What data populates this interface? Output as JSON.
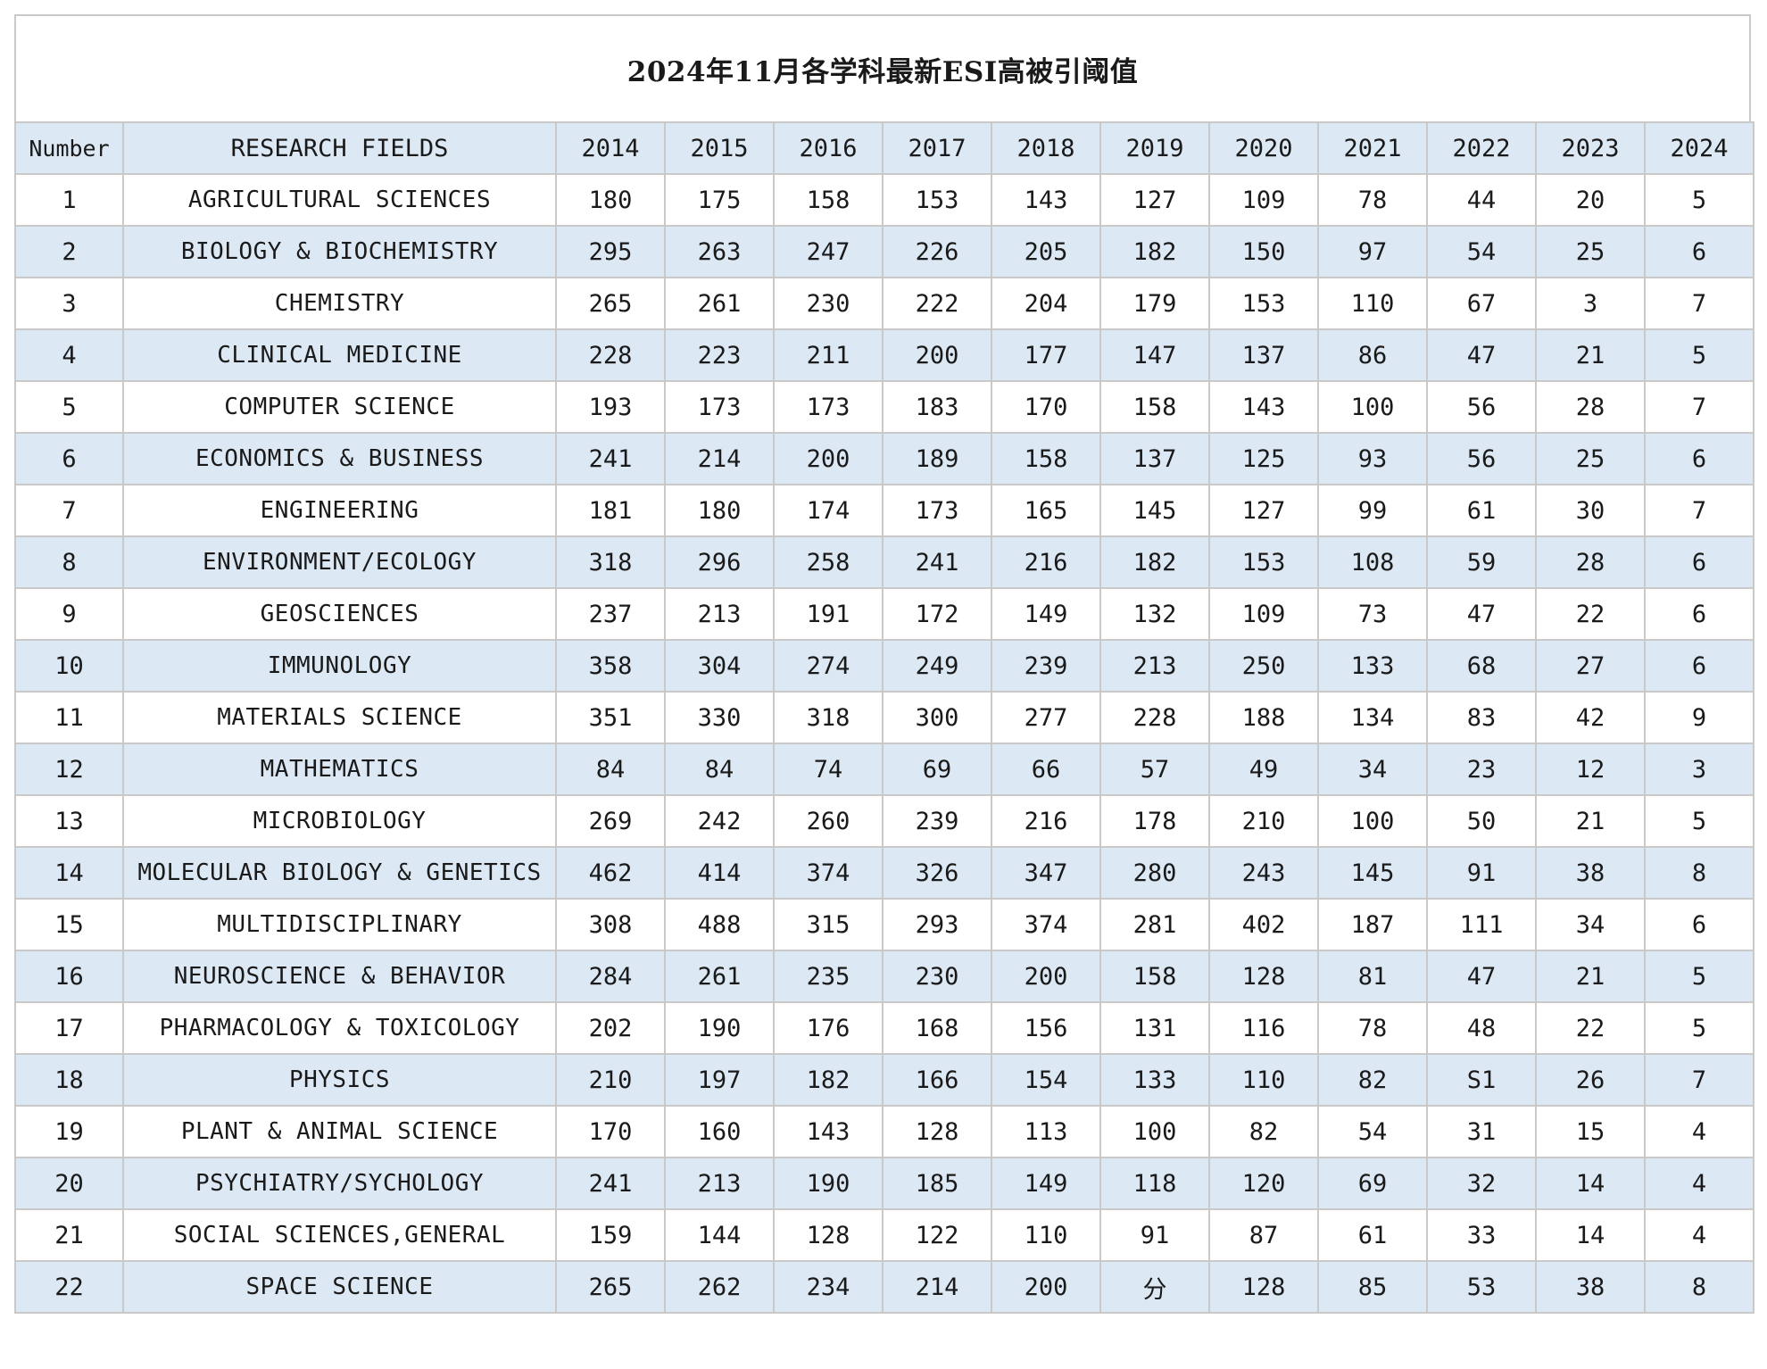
{
  "title": "2024年11月各学科最新ESI高被引阈值",
  "header": {
    "number": "Number",
    "field": "RESEARCH FIELDS",
    "years": [
      "2014",
      "2015",
      "2016",
      "2017",
      "2018",
      "2019",
      "2020",
      "2021",
      "2022",
      "2023",
      "2024"
    ]
  },
  "rows": [
    {
      "num": "1",
      "field": "AGRICULTURAL SCIENCES",
      "values": [
        "180",
        "175",
        "158",
        "153",
        "143",
        "127",
        "109",
        "78",
        "44",
        "20",
        "5"
      ]
    },
    {
      "num": "2",
      "field": "BIOLOGY & BIOCHEMISTRY",
      "values": [
        "295",
        "263",
        "247",
        "226",
        "205",
        "182",
        "150",
        "97",
        "54",
        "25",
        "6"
      ]
    },
    {
      "num": "3",
      "field": "CHEMISTRY",
      "values": [
        "265",
        "261",
        "230",
        "222",
        "204",
        "179",
        "153",
        "110",
        "67",
        "3",
        "7"
      ]
    },
    {
      "num": "4",
      "field": "CLINICAL MEDICINE",
      "values": [
        "228",
        "223",
        "211",
        "200",
        "177",
        "147",
        "137",
        "86",
        "47",
        "21",
        "5"
      ]
    },
    {
      "num": "5",
      "field": "COMPUTER SCIENCE",
      "values": [
        "193",
        "173",
        "173",
        "183",
        "170",
        "158",
        "143",
        "100",
        "56",
        "28",
        "7"
      ]
    },
    {
      "num": "6",
      "field": "ECONOMICS & BUSINESS",
      "values": [
        "241",
        "214",
        "200",
        "189",
        "158",
        "137",
        "125",
        "93",
        "56",
        "25",
        "6"
      ]
    },
    {
      "num": "7",
      "field": "ENGINEERING",
      "values": [
        "181",
        "180",
        "174",
        "173",
        "165",
        "145",
        "127",
        "99",
        "61",
        "30",
        "7"
      ]
    },
    {
      "num": "8",
      "field": "ENVIRONMENT/ECOLOGY",
      "values": [
        "318",
        "296",
        "258",
        "241",
        "216",
        "182",
        "153",
        "108",
        "59",
        "28",
        "6"
      ]
    },
    {
      "num": "9",
      "field": "GEOSCIENCES",
      "values": [
        "237",
        "213",
        "191",
        "172",
        "149",
        "132",
        "109",
        "73",
        "47",
        "22",
        "6"
      ]
    },
    {
      "num": "10",
      "field": "IMMUNOLOGY",
      "values": [
        "358",
        "304",
        "274",
        "249",
        "239",
        "213",
        "250",
        "133",
        "68",
        "27",
        "6"
      ]
    },
    {
      "num": "11",
      "field": "MATERIALS SCIENCE",
      "values": [
        "351",
        "330",
        "318",
        "300",
        "277",
        "228",
        "188",
        "134",
        "83",
        "42",
        "9"
      ]
    },
    {
      "num": "12",
      "field": "MATHEMATICS",
      "values": [
        "84",
        "84",
        "74",
        "69",
        "66",
        "57",
        "49",
        "34",
        "23",
        "12",
        "3"
      ]
    },
    {
      "num": "13",
      "field": "MICROBIOLOGY",
      "values": [
        "269",
        "242",
        "260",
        "239",
        "216",
        "178",
        "210",
        "100",
        "50",
        "21",
        "5"
      ]
    },
    {
      "num": "14",
      "field": "MOLECULAR BIOLOGY & GENETICS",
      "values": [
        "462",
        "414",
        "374",
        "326",
        "347",
        "280",
        "243",
        "145",
        "91",
        "38",
        "8"
      ]
    },
    {
      "num": "15",
      "field": "MULTIDISCIPLINARY",
      "values": [
        "308",
        "488",
        "315",
        "293",
        "374",
        "281",
        "402",
        "187",
        "111",
        "34",
        "6"
      ]
    },
    {
      "num": "16",
      "field": "NEUROSCIENCE & BEHAVIOR",
      "values": [
        "284",
        "261",
        "235",
        "230",
        "200",
        "158",
        "128",
        "81",
        "47",
        "21",
        "5"
      ]
    },
    {
      "num": "17",
      "field": "PHARMACOLOGY & TOXICOLOGY",
      "values": [
        "202",
        "190",
        "176",
        "168",
        "156",
        "131",
        "116",
        "78",
        "48",
        "22",
        "5"
      ]
    },
    {
      "num": "18",
      "field": "PHYSICS",
      "values": [
        "210",
        "197",
        "182",
        "166",
        "154",
        "133",
        "110",
        "82",
        "S1",
        "26",
        "7"
      ]
    },
    {
      "num": "19",
      "field": "PLANT & ANIMAL SCIENCE",
      "values": [
        "170",
        "160",
        "143",
        "128",
        "113",
        "100",
        "82",
        "54",
        "31",
        "15",
        "4"
      ]
    },
    {
      "num": "20",
      "field": "PSYCHIATRY/SYCHOLOGY",
      "values": [
        "241",
        "213",
        "190",
        "185",
        "149",
        "118",
        "120",
        "69",
        "32",
        "14",
        "4"
      ]
    },
    {
      "num": "21",
      "field": "SOCIAL SCIENCES,GENERAL",
      "values": [
        "159",
        "144",
        "128",
        "122",
        "110",
        "91",
        "87",
        "61",
        "33",
        "14",
        "4"
      ]
    },
    {
      "num": "22",
      "field": "SPACE SCIENCE",
      "values": [
        "265",
        "262",
        "234",
        "214",
        "200",
        "分",
        "128",
        "85",
        "53",
        "38",
        "8"
      ]
    }
  ]
}
